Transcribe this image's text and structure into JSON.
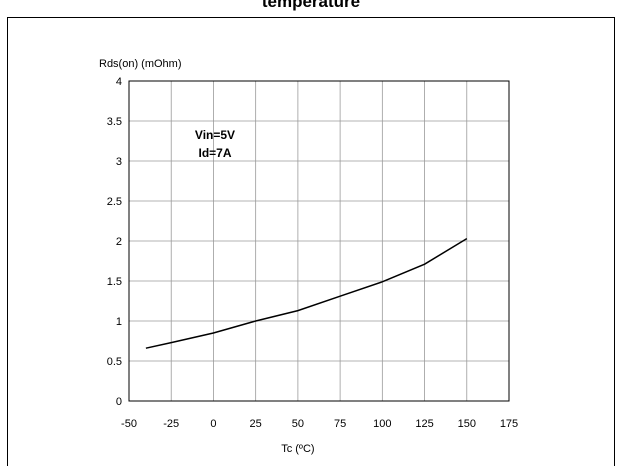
{
  "page": {
    "heading": "temperature"
  },
  "chart_data": {
    "type": "line",
    "ylabel": "Rds(on) (mOhm)",
    "xlabel": "Tc (ºC)",
    "xlim": [
      -50,
      175
    ],
    "ylim": [
      0,
      4
    ],
    "xticks": [
      -50,
      -25,
      0,
      25,
      50,
      75,
      100,
      125,
      150,
      175
    ],
    "yticks": [
      0,
      0.5,
      1,
      1.5,
      2,
      2.5,
      3,
      3.5,
      4
    ],
    "ytick_labels": [
      "0",
      "0.5",
      "1",
      "1.5",
      "2",
      "2.5",
      "3",
      "3.5",
      "4"
    ],
    "grid": true,
    "annotations": [
      "Vin=5V",
      "Id=7A"
    ],
    "series": [
      {
        "x": [
          -40,
          -25,
          0,
          25,
          50,
          75,
          100,
          125,
          150
        ],
        "values": [
          0.66,
          0.73,
          0.85,
          1.0,
          1.13,
          1.31,
          1.49,
          1.71,
          2.03
        ]
      }
    ]
  }
}
